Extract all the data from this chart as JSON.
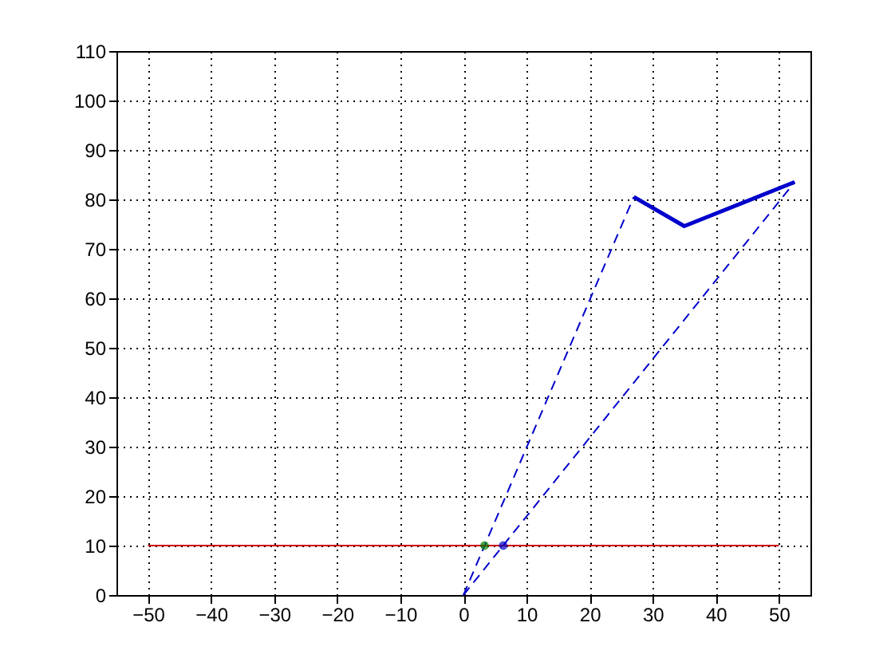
{
  "chart_data": {
    "type": "line",
    "xlim": [
      -55,
      55
    ],
    "xticks": [
      -50,
      -40,
      -30,
      -20,
      -10,
      0,
      10,
      20,
      30,
      40,
      50
    ],
    "ylim": [
      0,
      110
    ],
    "yticks": [
      0,
      10,
      20,
      30,
      40,
      50,
      60,
      70,
      80,
      90,
      100,
      110
    ],
    "grid": true,
    "series": [
      {
        "color": "#0000cc",
        "line_style": "solid",
        "x": [
          27,
          35,
          52.5
        ],
        "values": [
          80.5,
          74.6,
          83.5
        ]
      },
      {
        "color": "#0000cc",
        "line_style": "dashed",
        "x": [
          0,
          27
        ],
        "values": [
          0,
          80.5
        ]
      },
      {
        "color": "#0000cc",
        "line_style": "dashed",
        "x": [
          0,
          52.5
        ],
        "values": [
          0,
          83.5
        ]
      },
      {
        "color": "#cc0000",
        "line_style": "solid",
        "x": [
          -50,
          50
        ],
        "values": [
          10,
          10
        ]
      },
      {
        "type": "scatter",
        "color": "#008000",
        "marker": "circle",
        "x": [
          3.35
        ],
        "values": [
          10
        ]
      },
      {
        "type": "scatter",
        "color": "#0000cc",
        "marker": "circle",
        "x": [
          6.3
        ],
        "values": [
          10
        ]
      }
    ]
  }
}
